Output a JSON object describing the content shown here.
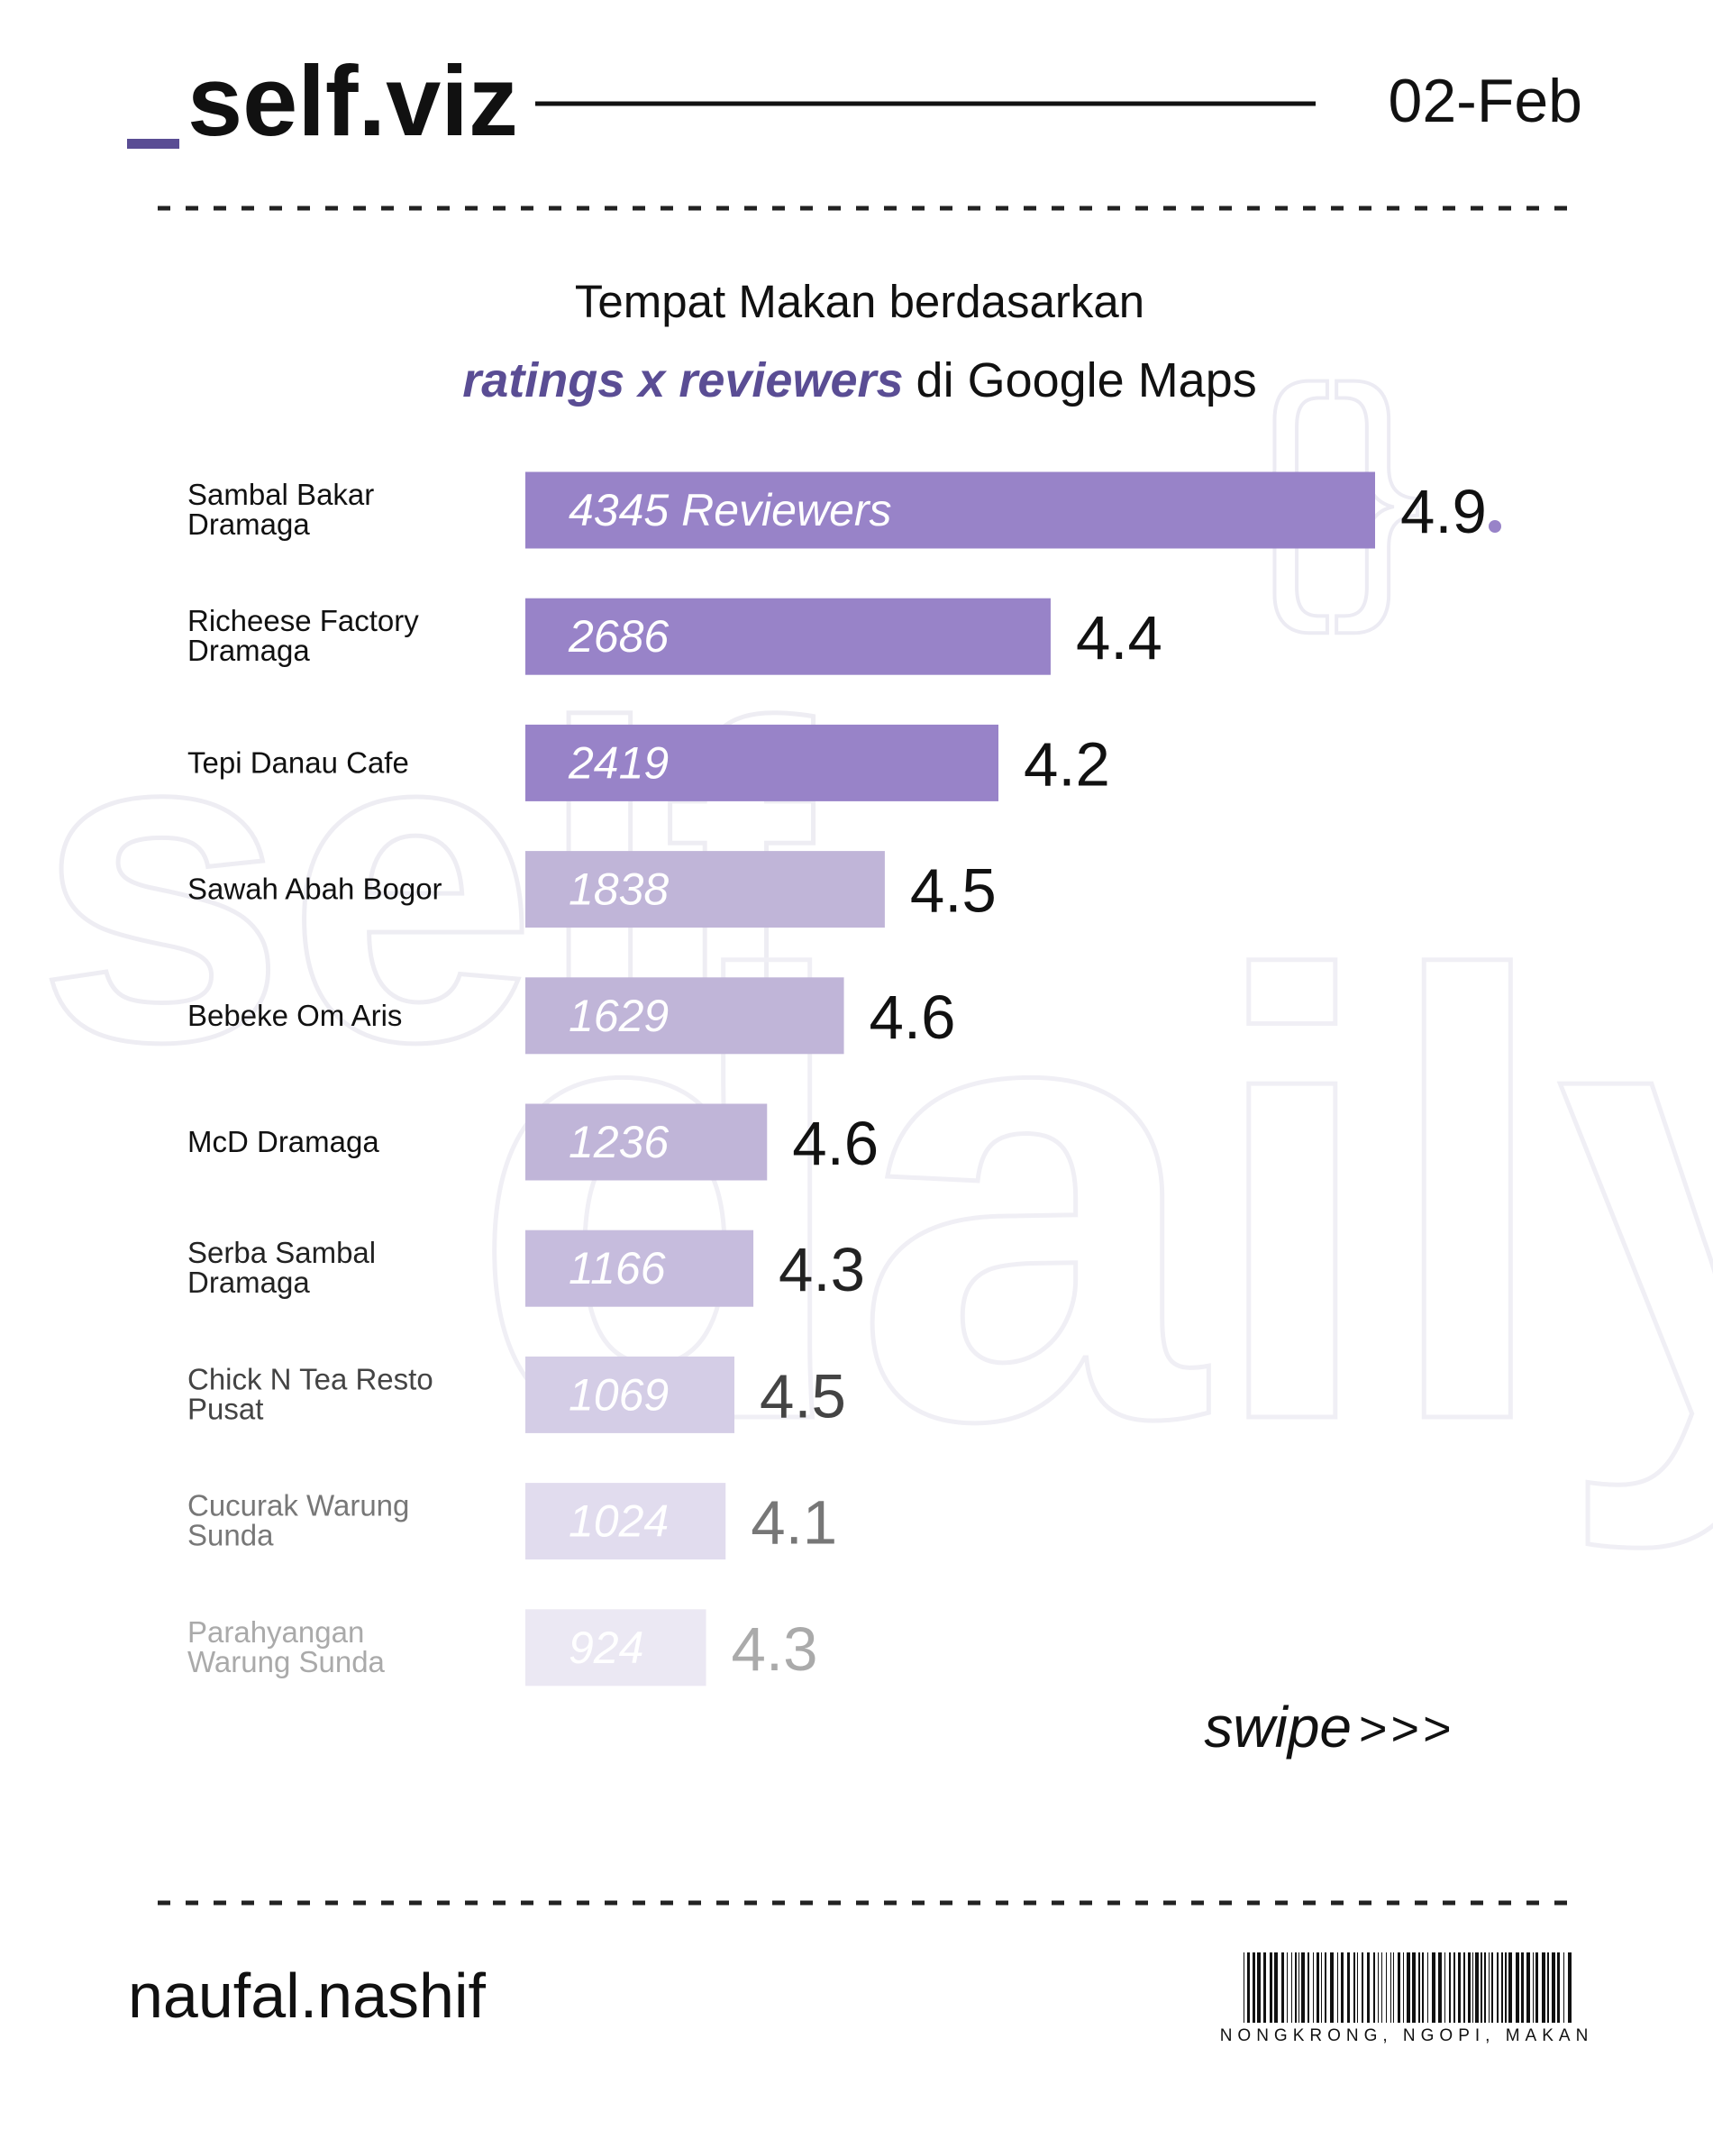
{
  "brand": "self.viz",
  "date": "02-Feb",
  "watermarks": [
    "{}",
    "self",
    "daily"
  ],
  "chart_data": {
    "type": "hbar",
    "title": "Tempat Makan berdasarkan",
    "subtitle_emphasis": "ratings x reviewers",
    "subtitle": "di Google Maps",
    "categories": [
      "Sambal Bakar Dramaga",
      "Richeese Factory Dramaga",
      "Tepi Danau Cafe",
      "Sawah Abah Bogor",
      "Bebeke Om Aris",
      "McD Dramaga",
      "Serba Sambal Dramaga",
      "Chick N Tea Resto Pusat",
      "Cucurak Warung Sunda",
      "Parahyangan Warung Sunda"
    ],
    "series": [
      {
        "name": "Reviewers",
        "values": [
          4345,
          2686,
          2419,
          1838,
          1629,
          1236,
          1166,
          1069,
          1024,
          924
        ],
        "value_labels": [
          "4345 Reviewers",
          "2686",
          "2419",
          "1838",
          "1629",
          "1236",
          "1166",
          "1069",
          "1024",
          "924"
        ],
        "colors": [
          "#9883c8",
          "#9883c8",
          "#9883c8",
          "#c0b5d8",
          "#c0b5d8",
          "#c0b5d8",
          "#c6bcdd",
          "#d4cde6",
          "#e1dcee",
          "#ebe8f3"
        ]
      },
      {
        "name": "Ratings",
        "values": [
          4.9,
          4.4,
          4.2,
          4.5,
          4.6,
          4.6,
          4.3,
          4.5,
          4.1,
          4.3
        ],
        "colors": [
          "#111111",
          "#111111",
          "#111111",
          "#111111",
          "#111111",
          "#111111",
          "#222222",
          "#444444",
          "#777777",
          "#aaaaaa"
        ]
      }
    ]
  },
  "swipe": "swipe",
  "arrows": ">>>",
  "footer": {
    "author": "naufal.nashif",
    "barcode_text": "NONGKRONG, NGOPI, MAKAN"
  }
}
